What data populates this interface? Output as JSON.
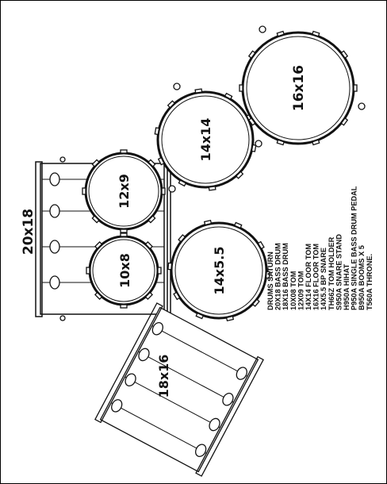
{
  "drums": {
    "bass_20x18": "20x18",
    "bass_18x16": "18x16",
    "tom_10x8": "10x8",
    "tom_12x9": "12x9",
    "floor_14x14": "14x14",
    "floor_16x16": "16x16",
    "snare_14x5_5": "14x5.5"
  },
  "spec_lines": [
    "DRUMS SATURN",
    "20X18 BASS DRUM",
    "18X16 BASS DRUM",
    "10X08 TOM",
    "12X09 TOM",
    "14X14 FLOOR TOM",
    "16X16 FLOOR TOM",
    "14X5.5 BP SNARE",
    "TH66Z TOM HOLDER",
    "S950A SNARE STAND",
    "H950A HIHAT",
    "P950A SINGLE BASS DRUM PEDAL",
    "B950A BOOMS X 5",
    "T560A THRONE."
  ]
}
